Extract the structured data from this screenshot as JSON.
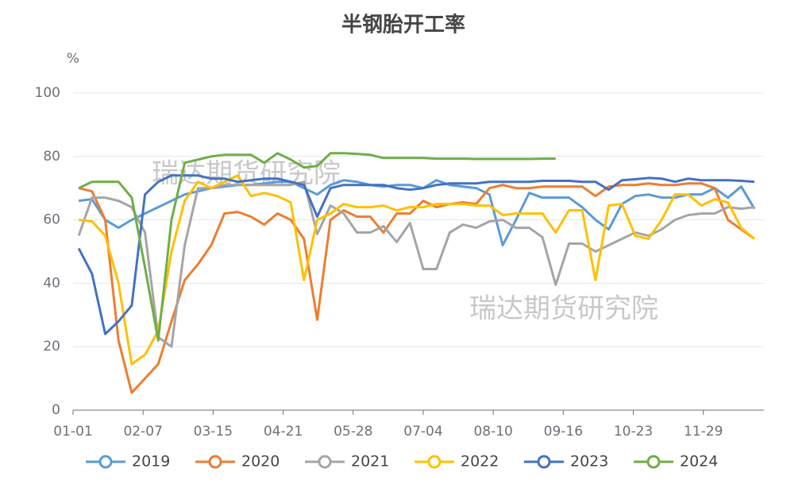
{
  "chart_data": {
    "type": "line",
    "title": "半钢胎开工率",
    "y_label": "%",
    "watermarks": [
      "瑞达期货研究院",
      "瑞达期货研究院"
    ],
    "x": [
      3,
      10,
      17,
      24,
      31,
      38,
      45,
      52,
      59,
      66,
      73,
      80,
      87,
      94,
      101,
      108,
      115,
      122,
      129,
      136,
      143,
      150,
      157,
      164,
      171,
      178,
      185,
      192,
      199,
      206,
      213,
      220,
      227,
      234,
      241,
      248,
      255,
      262,
      269,
      276,
      283,
      290,
      297,
      304,
      311,
      318,
      325,
      332,
      339,
      346,
      353,
      360
    ],
    "xlim": [
      0,
      365
    ],
    "xticks": [
      {
        "value": 0,
        "label": "01-01"
      },
      {
        "value": 37,
        "label": "02-07"
      },
      {
        "value": 74,
        "label": "03-15"
      },
      {
        "value": 111,
        "label": "04-21"
      },
      {
        "value": 148,
        "label": "05-28"
      },
      {
        "value": 185,
        "label": "07-04"
      },
      {
        "value": 222,
        "label": "08-10"
      },
      {
        "value": 259,
        "label": "09-16"
      },
      {
        "value": 296,
        "label": "10-23"
      },
      {
        "value": 333,
        "label": "11-29"
      }
    ],
    "ylim": [
      0,
      100
    ],
    "yticks": [
      0,
      20,
      40,
      60,
      80,
      100
    ],
    "grid": true,
    "legend": "bottom",
    "series": [
      {
        "name": "2019",
        "color": "#5b9bd5",
        "values": [
          66,
          66.5,
          60,
          57.5,
          60,
          62,
          64,
          66,
          68,
          69,
          70,
          70.5,
          71,
          71,
          71.5,
          72,
          72,
          70,
          68,
          71,
          72.5,
          72,
          71,
          70.5,
          71,
          71,
          70,
          72.5,
          71,
          70.5,
          70,
          68,
          52,
          60,
          68.5,
          67,
          67,
          67,
          64,
          60,
          57,
          65,
          67.5,
          68,
          67,
          67,
          68,
          68,
          70,
          67,
          70.5,
          63.5
        ]
      },
      {
        "name": "2020",
        "color": "#ed7d31",
        "values": [
          70,
          69,
          60,
          22,
          5.5,
          10,
          14.5,
          28,
          41,
          46,
          52,
          62,
          62.5,
          61,
          58.5,
          62,
          60,
          54,
          28.5,
          60,
          63,
          61,
          61,
          56,
          62,
          62,
          66,
          64,
          65,
          65.5,
          65,
          70,
          71,
          70,
          70,
          70.5,
          70.5,
          70.5,
          70.5,
          67.5,
          70.5,
          71,
          71,
          71.5,
          71,
          71,
          71.5,
          71.5,
          70,
          60,
          57,
          54
        ]
      },
      {
        "name": "2021",
        "color": "#a5a5a5",
        "values": [
          55,
          67,
          67,
          66,
          64,
          56,
          23,
          20,
          52,
          70,
          70,
          71,
          71,
          71,
          71,
          71,
          71,
          72,
          55.5,
          64.5,
          62,
          56,
          56,
          58,
          53,
          59,
          44.5,
          44.5,
          56,
          58.5,
          57.5,
          59.5,
          60,
          57.5,
          57.5,
          54.5,
          39.5,
          52.5,
          52.5,
          50,
          52,
          54,
          56,
          55,
          57,
          60,
          61.5,
          62,
          62,
          64,
          63.5,
          64
        ]
      },
      {
        "name": "2022",
        "color": "#ffc000",
        "values": [
          60,
          59.5,
          55,
          40,
          14.5,
          17.5,
          25,
          50,
          66,
          72,
          70,
          72,
          74,
          67.5,
          68.5,
          67.5,
          65.5,
          41,
          60,
          62,
          65,
          64,
          64,
          64.5,
          63,
          64,
          64,
          65,
          65,
          65,
          64.5,
          64.5,
          61.5,
          62,
          62,
          62,
          56,
          63,
          63,
          41,
          64.5,
          65,
          55,
          54,
          60,
          68,
          68,
          64.5,
          66.5,
          65.5,
          57.5,
          54
        ]
      },
      {
        "name": "2023",
        "color": "#4472c4",
        "values": [
          51,
          43,
          24,
          28,
          33,
          68,
          72,
          74,
          74,
          74,
          73,
          73,
          72,
          72.5,
          73,
          73,
          72,
          71,
          61,
          70,
          71,
          71,
          71,
          71,
          70,
          69.5,
          70,
          71,
          71.5,
          71.5,
          71.5,
          72,
          72,
          72,
          72,
          72.3,
          72.3,
          72.3,
          72,
          72,
          69.5,
          72.5,
          72.8,
          73.2,
          73,
          72,
          73,
          72.5,
          72.5,
          72.5,
          72.3,
          72
        ]
      },
      {
        "name": "2024",
        "color": "#70ad47",
        "values": [
          70,
          72,
          72,
          72,
          67,
          45,
          22,
          60,
          78,
          79,
          80,
          80.5,
          80.5,
          80.5,
          78,
          81,
          79,
          76.5,
          77,
          81,
          81,
          80.8,
          80.5,
          79.5,
          79.5,
          79.5,
          79.5,
          79.3,
          79.3,
          79.3,
          79.2,
          79.2,
          79.2,
          79.2,
          79.2,
          79.3,
          79.3,
          null,
          null,
          null,
          null,
          null,
          null,
          null,
          null,
          null,
          null,
          null,
          null,
          null,
          null,
          null
        ]
      }
    ]
  }
}
